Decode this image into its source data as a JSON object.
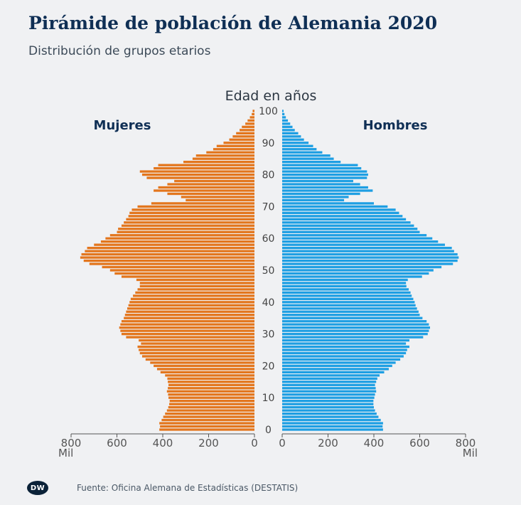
{
  "title": "Pirámide de población de Alemania 2020",
  "subtitle": "Distribución de grupos etarios",
  "source": "Fuente: Oficina Alemana de Estadísticas (DESTATIS)",
  "logo_text": "DW",
  "colors": {
    "female": "#e3761d",
    "male": "#1e9fe3",
    "text": "#0f2f55",
    "axis": "#555555"
  },
  "chart_data": {
    "type": "bar",
    "orientation": "horizontal-pyramid",
    "ylabel": "Edad en años",
    "x_unit_label": "Mil",
    "x_ticks": [
      0,
      200,
      400,
      600,
      800
    ],
    "y_ticks": [
      0,
      10,
      20,
      30,
      40,
      50,
      60,
      70,
      80,
      90,
      100
    ],
    "xlim": [
      0,
      800
    ],
    "ages": [
      0,
      1,
      2,
      3,
      4,
      5,
      6,
      7,
      8,
      9,
      10,
      11,
      12,
      13,
      14,
      15,
      16,
      17,
      18,
      19,
      20,
      21,
      22,
      23,
      24,
      25,
      26,
      27,
      28,
      29,
      30,
      31,
      32,
      33,
      34,
      35,
      36,
      37,
      38,
      39,
      40,
      41,
      42,
      43,
      44,
      45,
      46,
      47,
      48,
      49,
      50,
      51,
      52,
      53,
      54,
      55,
      56,
      57,
      58,
      59,
      60,
      61,
      62,
      63,
      64,
      65,
      66,
      67,
      68,
      69,
      70,
      71,
      72,
      73,
      74,
      75,
      76,
      77,
      78,
      79,
      80,
      81,
      82,
      83,
      84,
      85,
      86,
      87,
      88,
      89,
      90,
      91,
      92,
      93,
      94,
      95,
      96,
      97,
      98,
      99,
      100
    ],
    "series": [
      {
        "name": "Mujeres",
        "values": [
          415,
          412,
          415,
          405,
          398,
          390,
          382,
          376,
          372,
          370,
          375,
          377,
          382,
          378,
          375,
          378,
          380,
          390,
          410,
          425,
          440,
          455,
          475,
          490,
          500,
          505,
          510,
          495,
          505,
          560,
          580,
          585,
          590,
          585,
          580,
          570,
          565,
          560,
          555,
          550,
          545,
          540,
          530,
          520,
          510,
          500,
          500,
          515,
          580,
          610,
          630,
          665,
          720,
          745,
          760,
          755,
          740,
          730,
          700,
          670,
          650,
          630,
          600,
          595,
          580,
          570,
          560,
          550,
          545,
          535,
          510,
          450,
          300,
          320,
          380,
          440,
          420,
          380,
          350,
          470,
          490,
          500,
          440,
          420,
          310,
          270,
          255,
          210,
          180,
          165,
          135,
          110,
          95,
          80,
          65,
          55,
          40,
          30,
          20,
          12,
          8
        ]
      },
      {
        "name": "Hombres",
        "values": [
          440,
          438,
          440,
          430,
          420,
          412,
          405,
          400,
          398,
          398,
          402,
          405,
          410,
          408,
          405,
          410,
          415,
          425,
          445,
          465,
          480,
          495,
          515,
          530,
          540,
          545,
          555,
          540,
          555,
          615,
          635,
          640,
          645,
          640,
          630,
          612,
          600,
          595,
          588,
          582,
          578,
          572,
          565,
          560,
          552,
          542,
          540,
          548,
          610,
          640,
          660,
          695,
          745,
          765,
          770,
          765,
          750,
          740,
          710,
          680,
          655,
          630,
          600,
          590,
          575,
          560,
          540,
          525,
          510,
          495,
          460,
          400,
          270,
          290,
          340,
          395,
          375,
          340,
          310,
          370,
          375,
          370,
          345,
          330,
          255,
          225,
          210,
          175,
          150,
          135,
          115,
          95,
          82,
          70,
          55,
          45,
          35,
          25,
          16,
          10,
          6
        ]
      }
    ]
  }
}
